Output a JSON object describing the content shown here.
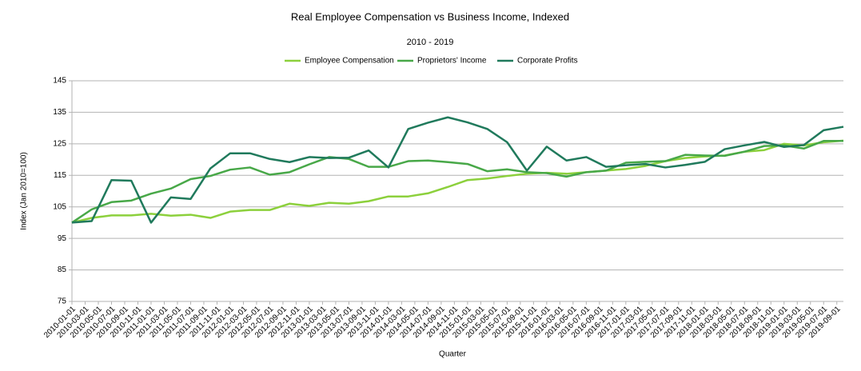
{
  "chart_data": {
    "type": "line",
    "title": "Real Employee Compensation vs Business Income, Indexed",
    "subtitle": "2010 - 2019",
    "x_label": "Quarter",
    "y_label": "Index (Jan 2010=100)",
    "x": [
      "2010-01-01",
      "2010-04-01",
      "2010-07-01",
      "2010-10-01",
      "2011-01-01",
      "2011-04-01",
      "2011-07-01",
      "2011-10-01",
      "2012-01-01",
      "2012-04-01",
      "2012-07-01",
      "2012-10-01",
      "2013-01-01",
      "2013-04-01",
      "2013-07-01",
      "2013-10-01",
      "2014-01-01",
      "2014-04-01",
      "2014-07-01",
      "2014-10-01",
      "2015-01-01",
      "2015-04-01",
      "2015-07-01",
      "2015-10-01",
      "2016-01-01",
      "2016-04-01",
      "2016-07-01",
      "2016-10-01",
      "2017-01-01",
      "2017-04-01",
      "2017-07-01",
      "2017-10-01",
      "2018-01-01",
      "2018-04-01",
      "2018-07-01",
      "2018-10-01",
      "2019-01-01",
      "2019-04-01",
      "2019-07-01",
      "2019-10-01"
    ],
    "series": [
      {
        "name": "Employee Compensation",
        "color": "#8cd03c",
        "values": [
          100,
          101.5,
          102.3,
          102.3,
          102.8,
          102.2,
          102.5,
          101.5,
          103.5,
          104,
          104,
          106,
          105.3,
          106.3,
          106,
          106.8,
          108.3,
          108.3,
          109.3,
          111.3,
          113.5,
          114,
          114.8,
          115.5,
          115.8,
          115.5,
          116,
          116.5,
          117,
          118,
          119.5,
          120.5,
          121,
          121.3,
          122.5,
          123,
          125,
          124.5,
          125.5,
          126
        ]
      },
      {
        "name": "Proprietors' Income",
        "color": "#48a848",
        "values": [
          100,
          104.2,
          106.5,
          107,
          109.2,
          110.8,
          113.8,
          114.8,
          116.8,
          117.5,
          115.2,
          116,
          118.5,
          120.8,
          120.2,
          117.7,
          117.7,
          119.5,
          119.7,
          119.2,
          118.6,
          116.3,
          116.9,
          116,
          115.7,
          114.6,
          116,
          116.5,
          119,
          119.3,
          119.5,
          121.5,
          121.3,
          121.2,
          122.5,
          124.3,
          124.5,
          123.5,
          125.9,
          125.9
        ]
      },
      {
        "name": "Corporate Profits",
        "color": "#207a5c",
        "values": [
          100,
          100.5,
          113.5,
          113.3,
          100,
          108,
          107.5,
          117.2,
          122,
          122,
          120.2,
          119.2,
          120.8,
          120.5,
          120.6,
          122.9,
          117.5,
          129.7,
          131.7,
          133.4,
          131.8,
          129.7,
          125.5,
          116.5,
          124.1,
          119.7,
          120.8,
          117.7,
          118.2,
          118.6,
          117.5,
          118.3,
          119.3,
          123.3,
          124.5,
          125.6,
          124,
          124.6,
          129.3,
          130.4
        ]
      }
    ],
    "xlim": [
      "2010-01-01",
      "2019-10-01"
    ],
    "xticks": [
      "2010-01-01",
      "2010-03-01",
      "2010-05-01",
      "2010-07-01",
      "2010-09-01",
      "2010-11-01",
      "2011-01-01",
      "2011-03-01",
      "2011-05-01",
      "2011-07-01",
      "2011-09-01",
      "2011-11-01",
      "2012-01-01",
      "2012-03-01",
      "2012-05-01",
      "2012-07-01",
      "2012-09-01",
      "2012-11-01",
      "2013-01-01",
      "2013-03-01",
      "2013-05-01",
      "2013-07-01",
      "2013-09-01",
      "2013-11-01",
      "2014-01-01",
      "2014-03-01",
      "2014-05-01",
      "2014-07-01",
      "2014-09-01",
      "2014-11-01",
      "2015-01-01",
      "2015-03-01",
      "2015-05-01",
      "2015-07-01",
      "2015-09-01",
      "2015-11-01",
      "2016-01-01",
      "2016-03-01",
      "2016-05-01",
      "2016-07-01",
      "2016-09-01",
      "2016-11-01",
      "2017-01-01",
      "2017-03-01",
      "2017-05-01",
      "2017-07-01",
      "2017-09-01",
      "2017-11-01",
      "2018-01-01",
      "2018-03-01",
      "2018-05-01",
      "2018-07-01",
      "2018-09-01",
      "2018-11-01",
      "2019-01-01",
      "2019-03-01",
      "2019-05-01",
      "2019-07-01",
      "2019-09-01"
    ],
    "ylim": [
      75,
      145
    ],
    "yticks": [
      75,
      85,
      95,
      105,
      115,
      125,
      135,
      145
    ],
    "grid": true,
    "legend": "top"
  }
}
